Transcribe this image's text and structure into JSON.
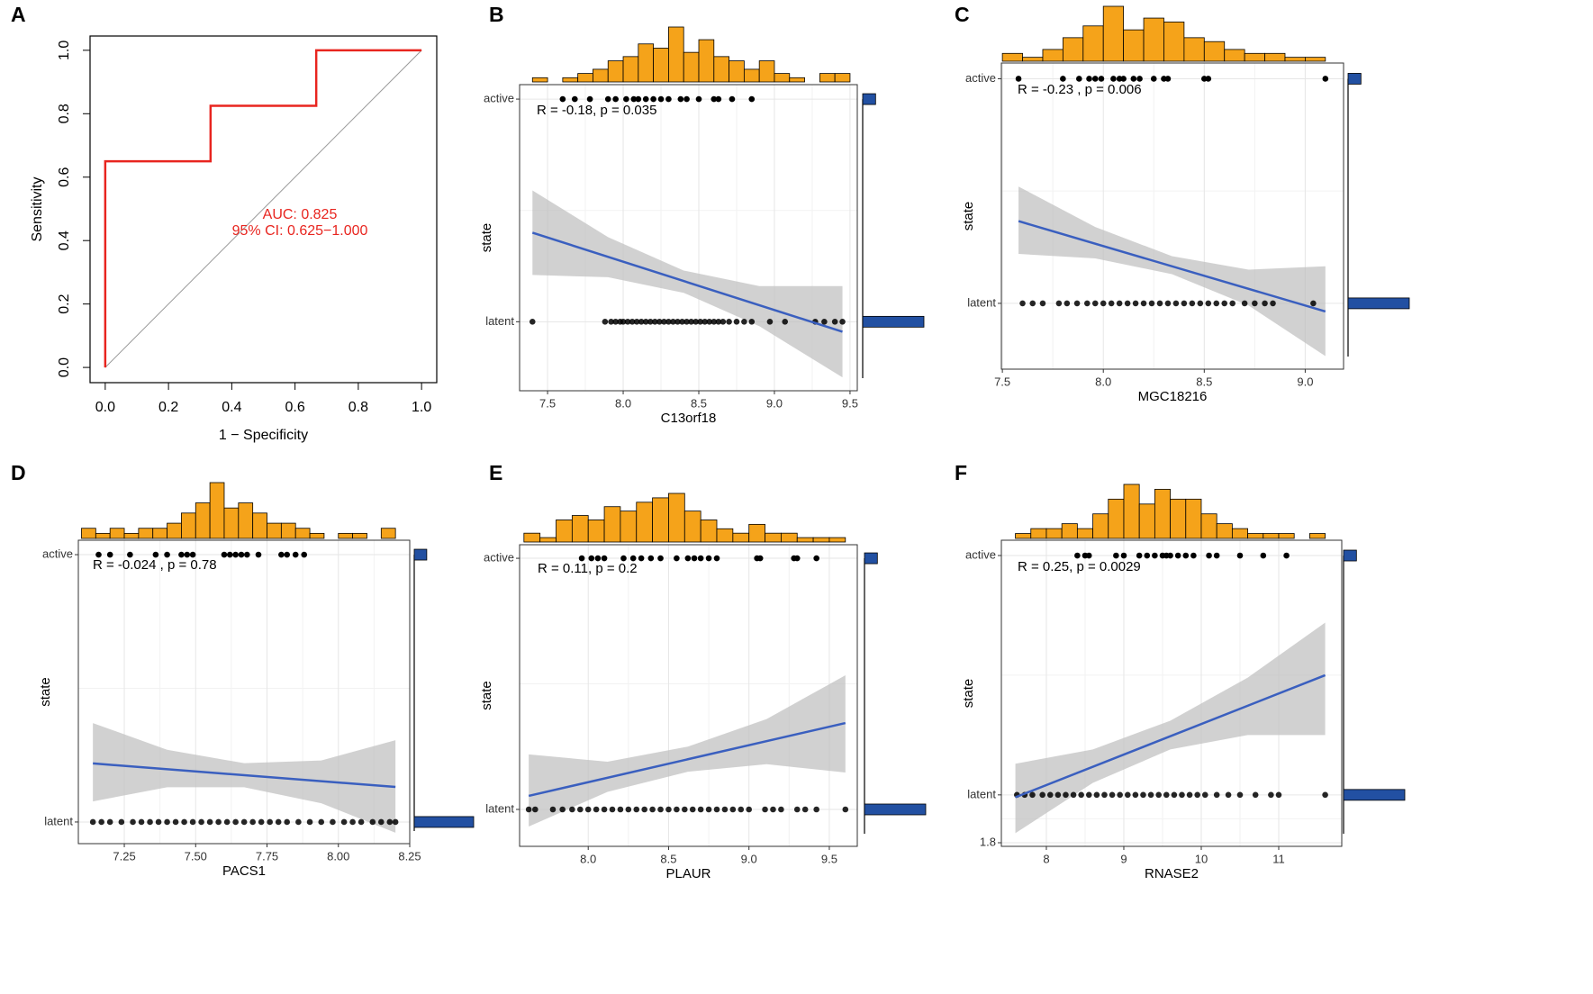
{
  "chart_data": [
    {
      "type": "line",
      "panel": "A",
      "xlabel": "1 − Specificity",
      "ylabel": "Sensitivity",
      "x": [
        0,
        0,
        0.333,
        0.333,
        0.667,
        0.667,
        1
      ],
      "values": [
        0,
        0.65,
        0.65,
        0.825,
        0.825,
        1,
        1
      ],
      "color": "#e8251f",
      "xlim": [
        -0.048,
        1.048
      ],
      "ylim": [
        -0.048,
        1.045
      ],
      "xticks": [
        {
          "value": 0,
          "label": "0.0"
        },
        0.2,
        0.4,
        0.6,
        0.8,
        {
          "value": 1,
          "label": "1.0"
        }
      ],
      "yticks": [
        {
          "value": 0,
          "label": "0.0"
        },
        0.2,
        0.4,
        0.6,
        0.8,
        {
          "value": 1,
          "label": "1.0"
        }
      ],
      "annotations": [
        "AUC: 0.825",
        "95% CI: 0.625−1.000"
      ]
    },
    {
      "type": "scatter",
      "panel": "B",
      "xlabel": "C13orf18",
      "ylabel": "state",
      "annotation": "R = -0.18,  p = 0.035",
      "xlim": [
        7.315,
        9.548
      ],
      "ylim": [
        1.69,
        3.065
      ],
      "xticks": [
        7.5,
        {
          "value": 8,
          "label": "8.0"
        },
        8.5,
        {
          "value": 9,
          "label": "9.0"
        },
        9.5
      ],
      "yticks": [
        {
          "value": 3,
          "label": "active"
        },
        {
          "value": 2,
          "label": "latent"
        }
      ],
      "active_x": [
        7.6,
        7.68,
        7.78,
        7.9,
        7.95,
        8.02,
        8.07,
        8.1,
        8.15,
        8.2,
        8.25,
        8.3,
        8.38,
        8.42,
        8.5,
        8.6,
        8.63,
        8.72,
        8.85
      ],
      "latent_x": [
        7.4,
        7.88,
        7.92,
        7.95,
        7.98,
        8.0,
        8.03,
        8.06,
        8.09,
        8.12,
        8.15,
        8.18,
        8.21,
        8.24,
        8.27,
        8.3,
        8.33,
        8.36,
        8.39,
        8.42,
        8.45,
        8.48,
        8.51,
        8.54,
        8.57,
        8.6,
        8.63,
        8.66,
        8.7,
        8.75,
        8.8,
        8.85,
        8.97,
        9.07,
        9.27,
        9.33,
        9.4,
        9.45
      ],
      "hist": {
        "bins": [
          7.4,
          7.5,
          7.6,
          7.7,
          7.8,
          7.9,
          8.0,
          8.1,
          8.2,
          8.3,
          8.4,
          8.5,
          8.6,
          8.7,
          8.8,
          8.9,
          9.0,
          9.1,
          9.2,
          9.3,
          9.4,
          9.5
        ],
        "counts": [
          1,
          0,
          1,
          2,
          3,
          5,
          6,
          9,
          8,
          13,
          7,
          10,
          6,
          5,
          3,
          5,
          2,
          1,
          0,
          2,
          2
        ],
        "color": "#f5a31a"
      },
      "state_counts": [
        20,
        95
      ],
      "state_color": "#2250a2",
      "fit": {
        "x": [
          7.4,
          9.45
        ],
        "y": [
          2.4,
          1.955
        ],
        "color": "#3a5fbf"
      },
      "ci": {
        "x": [
          7.4,
          7.9,
          8.4,
          8.9,
          9.45
        ],
        "upper": [
          2.59,
          2.38,
          2.23,
          2.16,
          2.16
        ],
        "lower": [
          2.21,
          2.2,
          2.13,
          1.98,
          1.75
        ]
      }
    },
    {
      "type": "scatter",
      "panel": "C",
      "xlabel": "MGC18216",
      "ylabel": "state",
      "annotation": "R = -0.23 , p = 0.006",
      "xlim": [
        7.495,
        9.19
      ],
      "ylim": [
        1.707,
        3.07
      ],
      "xticks": [
        7.5,
        {
          "value": 8,
          "label": "8.0"
        },
        8.5,
        {
          "value": 9,
          "label": "9.0"
        }
      ],
      "yticks": [
        {
          "value": 3,
          "label": "active"
        },
        {
          "value": 2,
          "label": "latent"
        }
      ],
      "active_x": [
        7.58,
        7.8,
        7.88,
        7.93,
        7.96,
        7.99,
        8.05,
        8.08,
        8.1,
        8.15,
        8.18,
        8.25,
        8.3,
        8.32,
        8.5,
        8.52,
        9.1
      ],
      "latent_x": [
        7.6,
        7.65,
        7.7,
        7.78,
        7.82,
        7.87,
        7.92,
        7.96,
        8.0,
        8.04,
        8.08,
        8.12,
        8.16,
        8.2,
        8.24,
        8.28,
        8.32,
        8.36,
        8.4,
        8.44,
        8.48,
        8.52,
        8.56,
        8.6,
        8.64,
        8.7,
        8.75,
        8.8,
        8.84,
        9.04
      ],
      "hist": {
        "bins": [
          7.5,
          7.6,
          7.7,
          7.8,
          7.9,
          8.0,
          8.1,
          8.2,
          8.3,
          8.4,
          8.5,
          8.6,
          8.7,
          8.8,
          8.9,
          9.0,
          9.1
        ],
        "counts": [
          2,
          1,
          3,
          6,
          9,
          14,
          8,
          11,
          10,
          6,
          5,
          3,
          2,
          2,
          1,
          1
        ],
        "color": "#f5a31a"
      },
      "state_counts": [
        20,
        95
      ],
      "state_color": "#2250a2",
      "fit": {
        "x": [
          7.58,
          9.1
        ],
        "y": [
          2.366,
          1.964
        ],
        "color": "#3a5fbf"
      },
      "ci": {
        "x": [
          7.58,
          7.96,
          8.34,
          8.72,
          9.1
        ],
        "upper": [
          2.52,
          2.34,
          2.21,
          2.15,
          2.165
        ],
        "lower": [
          2.22,
          2.2,
          2.13,
          1.99,
          1.765
        ]
      }
    },
    {
      "type": "scatter",
      "panel": "D",
      "xlabel": "PACS1",
      "ylabel": "state",
      "annotation": "R = -0.024 , p = 0.78",
      "xlim": [
        7.089,
        8.25
      ],
      "ylim": [
        1.919,
        3.054
      ],
      "xticks": [
        7.25,
        {
          "value": 7.5,
          "label": "7.50"
        },
        7.75,
        {
          "value": 8,
          "label": "8.00"
        },
        8.25
      ],
      "yticks": [
        {
          "value": 3,
          "label": "active"
        },
        {
          "value": 2,
          "label": "latent"
        }
      ],
      "active_x": [
        7.16,
        7.2,
        7.27,
        7.36,
        7.4,
        7.45,
        7.47,
        7.49,
        7.6,
        7.62,
        7.64,
        7.66,
        7.68,
        7.72,
        7.8,
        7.82,
        7.85,
        7.88
      ],
      "latent_x": [
        7.14,
        7.17,
        7.2,
        7.24,
        7.28,
        7.31,
        7.34,
        7.37,
        7.4,
        7.43,
        7.46,
        7.49,
        7.52,
        7.55,
        7.58,
        7.61,
        7.64,
        7.67,
        7.7,
        7.73,
        7.76,
        7.79,
        7.82,
        7.86,
        7.9,
        7.94,
        7.98,
        8.02,
        8.05,
        8.08,
        8.12,
        8.15,
        8.18,
        8.2
      ],
      "hist": {
        "bins": [
          7.1,
          7.15,
          7.2,
          7.25,
          7.3,
          7.35,
          7.4,
          7.45,
          7.5,
          7.55,
          7.6,
          7.65,
          7.7,
          7.75,
          7.8,
          7.85,
          7.9,
          7.95,
          8.0,
          8.05,
          8.1,
          8.15,
          8.2
        ],
        "counts": [
          2,
          1,
          2,
          1,
          2,
          2,
          3,
          5,
          7,
          11,
          6,
          7,
          5,
          3,
          3,
          2,
          1,
          0,
          1,
          1,
          0,
          2
        ],
        "color": "#f5a31a"
      },
      "state_counts": [
        20,
        95
      ],
      "state_color": "#2250a2",
      "fit": {
        "x": [
          7.14,
          8.2
        ],
        "y": [
          2.219,
          2.131
        ],
        "color": "#3a5fbf"
      },
      "ci": {
        "x": [
          7.14,
          7.4,
          7.67,
          7.94,
          8.2
        ],
        "upper": [
          2.37,
          2.27,
          2.22,
          2.23,
          2.306
        ],
        "lower": [
          2.077,
          2.13,
          2.13,
          2.07,
          1.96
        ]
      }
    },
    {
      "type": "scatter",
      "panel": "E",
      "xlabel": "PLAUR",
      "ylabel": "state",
      "annotation": "R = 0.11, p = 0.2",
      "xlim": [
        7.573,
        9.674
      ],
      "ylim": [
        1.853,
        3.054
      ],
      "xticks": [
        {
          "value": 8,
          "label": "8.0"
        },
        8.5,
        {
          "value": 9,
          "label": "9.0"
        },
        9.5
      ],
      "yticks": [
        {
          "value": 3,
          "label": "active"
        },
        {
          "value": 2,
          "label": "latent"
        }
      ],
      "active_x": [
        7.96,
        8.02,
        8.06,
        8.1,
        8.22,
        8.28,
        8.33,
        8.39,
        8.45,
        8.55,
        8.62,
        8.66,
        8.7,
        8.75,
        8.8,
        9.05,
        9.07,
        9.28,
        9.3,
        9.42
      ],
      "latent_x": [
        7.63,
        7.67,
        7.78,
        7.84,
        7.9,
        7.95,
        8.0,
        8.05,
        8.1,
        8.15,
        8.2,
        8.25,
        8.3,
        8.35,
        8.4,
        8.45,
        8.5,
        8.55,
        8.6,
        8.65,
        8.7,
        8.75,
        8.8,
        8.85,
        8.9,
        8.95,
        9.0,
        9.1,
        9.15,
        9.2,
        9.3,
        9.35,
        9.42,
        9.6
      ],
      "hist": {
        "bins": [
          7.6,
          7.7,
          7.8,
          7.9,
          8.0,
          8.1,
          8.2,
          8.3,
          8.4,
          8.5,
          8.6,
          8.7,
          8.8,
          8.9,
          9.0,
          9.1,
          9.2,
          9.3,
          9.4,
          9.5,
          9.6
        ],
        "counts": [
          2,
          1,
          5,
          6,
          5,
          8,
          7,
          9,
          10,
          11,
          7,
          5,
          3,
          2,
          4,
          2,
          2,
          1,
          1,
          1
        ],
        "color": "#f5a31a"
      },
      "state_counts": [
        20,
        95
      ],
      "state_color": "#2250a2",
      "fit": {
        "x": [
          7.63,
          9.6
        ],
        "y": [
          2.054,
          2.344
        ],
        "color": "#3a5fbf"
      },
      "ci": {
        "x": [
          7.63,
          8.12,
          8.62,
          9.11,
          9.6
        ],
        "upper": [
          2.219,
          2.19,
          2.25,
          2.36,
          2.534
        ],
        "lower": [
          1.932,
          2.07,
          2.15,
          2.18,
          2.147
        ]
      }
    },
    {
      "type": "scatter",
      "panel": "F",
      "xlabel": "RNASE2",
      "ylabel": "state",
      "annotation": "R = 0.25, p = 0.0029",
      "xlim": [
        7.419,
        11.814
      ],
      "ylim": [
        1.785,
        3.064
      ],
      "xticks": [
        8,
        9,
        10,
        11
      ],
      "yticks": [
        {
          "value": 3,
          "label": "active"
        },
        {
          "value": 2,
          "label": "latent"
        },
        1.8
      ],
      "active_x": [
        8.4,
        8.5,
        8.55,
        8.9,
        9.0,
        9.2,
        9.3,
        9.4,
        9.5,
        9.55,
        9.6,
        9.7,
        9.8,
        9.9,
        10.1,
        10.2,
        10.5,
        10.8,
        11.1
      ],
      "latent_x": [
        7.62,
        7.72,
        7.82,
        7.95,
        8.05,
        8.15,
        8.25,
        8.35,
        8.45,
        8.55,
        8.65,
        8.75,
        8.85,
        8.95,
        9.05,
        9.15,
        9.25,
        9.35,
        9.45,
        9.55,
        9.65,
        9.75,
        9.85,
        9.95,
        10.05,
        10.2,
        10.35,
        10.5,
        10.7,
        10.9,
        11.0,
        11.6
      ],
      "hist": {
        "bins": [
          7.6,
          7.8,
          8.0,
          8.2,
          8.4,
          8.6,
          8.8,
          9.0,
          9.2,
          9.4,
          9.6,
          9.8,
          10.0,
          10.2,
          10.4,
          10.6,
          10.8,
          11.0,
          11.2,
          11.4,
          11.6
        ],
        "counts": [
          1,
          2,
          2,
          3,
          2,
          5,
          8,
          11,
          7,
          10,
          8,
          8,
          5,
          3,
          2,
          1,
          1,
          1,
          0,
          1
        ],
        "color": "#f5a31a"
      },
      "state_counts": [
        20,
        95
      ],
      "state_color": "#2250a2",
      "fit": {
        "x": [
          7.6,
          11.6
        ],
        "y": [
          1.99,
          2.5
        ],
        "color": "#3a5fbf"
      },
      "ci": {
        "x": [
          7.6,
          8.6,
          9.6,
          10.6,
          11.6
        ],
        "upper": [
          2.13,
          2.19,
          2.31,
          2.49,
          2.72
        ],
        "lower": [
          1.84,
          2.05,
          2.19,
          2.25,
          2.25
        ]
      }
    }
  ]
}
